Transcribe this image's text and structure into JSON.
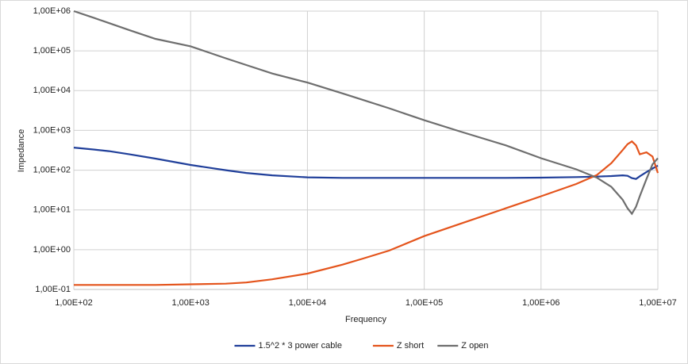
{
  "chart_data": {
    "type": "line",
    "x_label": "Frequency",
    "y_label": "Impedance",
    "x": [
      100,
      150,
      200,
      300,
      500,
      1000,
      2000,
      3000,
      5000,
      10000,
      20000,
      30000,
      50000,
      100000,
      200000,
      500000,
      1000000,
      2000000,
      3000000,
      4000000,
      5000000,
      5500000,
      6000000,
      6500000,
      7000000,
      8000000,
      9000000,
      10000000
    ],
    "series": [
      {
        "name": "1.5^2 * 3  power cable",
        "color": "#203f9a",
        "values": [
          370,
          330,
          300,
          250,
          195,
          135,
          100,
          85,
          74,
          66,
          64,
          64,
          64,
          64,
          64,
          64,
          65,
          67,
          69,
          71,
          74,
          72,
          63,
          60,
          70,
          90,
          110,
          130
        ]
      },
      {
        "name": "Z short",
        "color": "#e4541c",
        "values": [
          0.13,
          0.13,
          0.13,
          0.13,
          0.13,
          0.135,
          0.14,
          0.15,
          0.18,
          0.25,
          0.42,
          0.6,
          0.95,
          2.2,
          4.4,
          11,
          22,
          45,
          75,
          150,
          320,
          450,
          530,
          420,
          250,
          280,
          220,
          85
        ]
      },
      {
        "name": "Z open",
        "color": "#6e6e6e",
        "values": [
          1000000,
          670000,
          500000,
          330000,
          200000,
          130000,
          65000,
          44000,
          27000,
          16000,
          8500,
          5800,
          3600,
          1800,
          950,
          420,
          200,
          105,
          65,
          38,
          18,
          11,
          8,
          12,
          22,
          60,
          140,
          200
        ]
      }
    ],
    "xlim": [
      100,
      10000000
    ],
    "ylim": [
      0.1,
      1000000
    ],
    "x_log": true,
    "y_log": true,
    "grid": true,
    "legend": "bottom",
    "xticks": [
      {
        "value": 100,
        "label": "1,00E+02"
      },
      {
        "value": 1000,
        "label": "1,00E+03"
      },
      {
        "value": 10000,
        "label": "1,00E+04"
      },
      {
        "value": 100000,
        "label": "1,00E+05"
      },
      {
        "value": 1000000,
        "label": "1,00E+06"
      },
      {
        "value": 10000000,
        "label": "1,00E+07"
      }
    ],
    "yticks": [
      {
        "value": 0.1,
        "label": "1,00E-01"
      },
      {
        "value": 1,
        "label": "1,00E+00"
      },
      {
        "value": 10,
        "label": "1,00E+01"
      },
      {
        "value": 100,
        "label": "1,00E+02"
      },
      {
        "value": 1000,
        "label": "1,00E+03"
      },
      {
        "value": 10000,
        "label": "1,00E+04"
      },
      {
        "value": 100000,
        "label": "1,00E+05"
      },
      {
        "value": 1000000,
        "label": "1,00E+06"
      }
    ]
  }
}
